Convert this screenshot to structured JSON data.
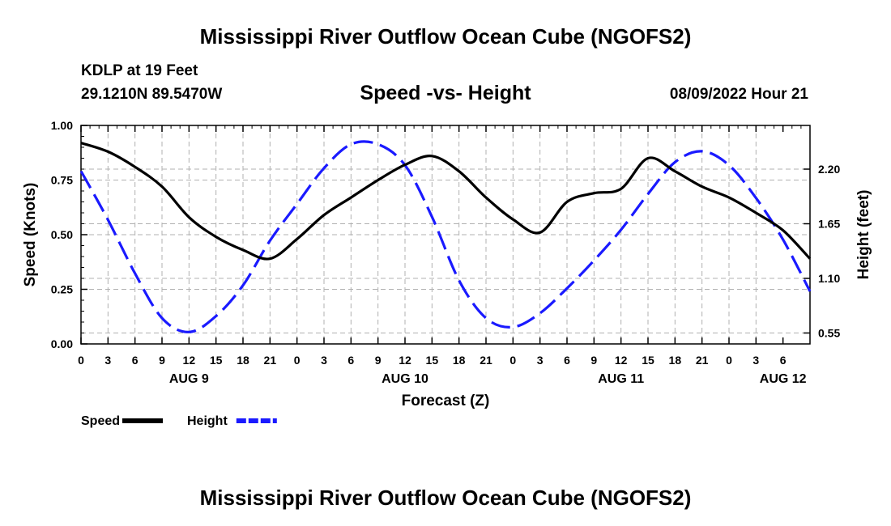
{
  "header": {
    "title": "Mississippi River Outflow Ocean Cube (NGOFS2)",
    "station": "KDLP at 19 Feet",
    "coords": "29.1210N  89.5470W",
    "subtitle": "Speed -vs- Height",
    "datestamp": "08/09/2022 Hour 21",
    "bottom_title": "Mississippi River Outflow Ocean Cube (NGOFS2)"
  },
  "chart_data": {
    "type": "line",
    "title": "Speed -vs- Height",
    "xlabel": "Forecast (Z)",
    "ylabel": "Speed (Knots)",
    "y2label": "Height (feet)",
    "x_start_hour": 0,
    "x_end_hour": 81,
    "x_tick_step_hours": 3,
    "x_tick_labels": [
      "0",
      "3",
      "6",
      "9",
      "12",
      "15",
      "18",
      "21",
      "0",
      "3",
      "6",
      "9",
      "12",
      "15",
      "18",
      "21",
      "0",
      "3",
      "6",
      "9",
      "12",
      "15",
      "18",
      "21",
      "0",
      "3",
      "6"
    ],
    "day_labels": [
      {
        "label": "AUG 9",
        "hour": 12
      },
      {
        "label": "AUG 10",
        "hour": 36
      },
      {
        "label": "AUG 11",
        "hour": 60
      },
      {
        "label": "AUG 12",
        "hour": 78
      }
    ],
    "ylim": [
      0,
      1
    ],
    "y_ticks": [
      0,
      0.25,
      0.5,
      0.75,
      1
    ],
    "y_tick_labels": [
      "0.00",
      "0.25",
      "0.50",
      "0.75",
      "1.00"
    ],
    "y2lim": [
      0.44,
      2.64
    ],
    "y2_ticks": [
      0.55,
      1.1,
      1.65,
      2.2
    ],
    "y2_tick_labels": [
      "0.55",
      "1.10",
      "1.65",
      "2.20"
    ],
    "grid": true,
    "legend": "bottom-left",
    "series": [
      {
        "name": "Speed",
        "axis": "left",
        "color": "#000000",
        "style": "solid",
        "x": [
          0,
          3,
          6,
          9,
          12,
          15,
          18,
          21,
          24,
          27,
          30,
          33,
          36,
          39,
          42,
          45,
          48,
          51,
          54,
          57,
          60,
          63,
          66,
          69,
          72,
          75,
          78,
          81
        ],
        "values": [
          0.92,
          0.88,
          0.81,
          0.72,
          0.58,
          0.49,
          0.43,
          0.39,
          0.48,
          0.59,
          0.67,
          0.75,
          0.82,
          0.86,
          0.79,
          0.67,
          0.57,
          0.51,
          0.65,
          0.69,
          0.71,
          0.85,
          0.79,
          0.72,
          0.67,
          0.6,
          0.52,
          0.39
        ]
      },
      {
        "name": "Height",
        "axis": "right",
        "color": "#1a1aff",
        "style": "dashed",
        "x": [
          0,
          3,
          6,
          9,
          12,
          15,
          18,
          21,
          24,
          27,
          30,
          33,
          36,
          39,
          42,
          45,
          48,
          51,
          54,
          57,
          60,
          63,
          66,
          69,
          72,
          75,
          78,
          81
        ],
        "values": [
          2.18,
          1.69,
          1.15,
          0.7,
          0.56,
          0.72,
          1.03,
          1.48,
          1.85,
          2.21,
          2.45,
          2.45,
          2.24,
          1.72,
          1.08,
          0.7,
          0.61,
          0.75,
          1.0,
          1.28,
          1.59,
          1.95,
          2.27,
          2.38,
          2.24,
          1.91,
          1.49,
          0.97
        ]
      }
    ]
  }
}
